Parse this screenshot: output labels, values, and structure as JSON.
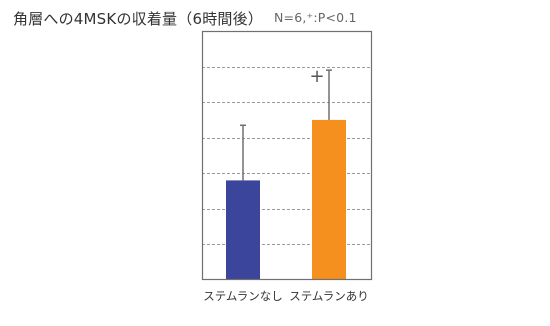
{
  "title": "角層への4MSKの収着量（6時間後）",
  "subtitle": "N=6,⁺:P<0.1",
  "colors": {
    "bar_without": "#3a459b",
    "bar_with": "#f5901e",
    "error_bar": "#707070",
    "grid": "#9a9a9a",
    "frame": "#707070"
  },
  "chart_data": {
    "type": "bar",
    "categories": [
      "ステムランなし",
      "ステムランあり"
    ],
    "values": [
      2.8,
      4.5
    ],
    "errors": [
      1.55,
      1.4
    ],
    "significance": [
      "",
      "+"
    ],
    "ylim": [
      0,
      7
    ],
    "grid": true,
    "grid_step": 1,
    "title": "角層への4MSKの収着量（6時間後）",
    "subtitle": "N=6,⁺:P<0.1",
    "xlabel": "",
    "ylabel": ""
  }
}
